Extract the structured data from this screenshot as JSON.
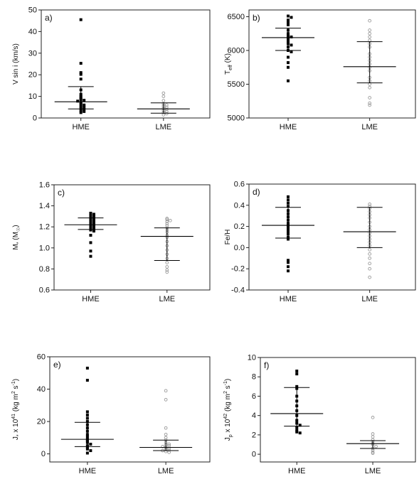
{
  "colors": {
    "hme": "#000000",
    "lme": "#999999",
    "axis": "#222222"
  },
  "chart_data": [
    {
      "type": "scatter",
      "panel_label": "a)",
      "ylabel_html": "V sin i (km/s)",
      "ylim": [
        0,
        50
      ],
      "yticks": [
        0,
        10,
        20,
        30,
        40,
        50
      ],
      "ytick_labels": [
        "0",
        "10",
        "20",
        "30",
        "40",
        "50"
      ],
      "categories": [
        "HME",
        "LME"
      ],
      "series": [
        {
          "name": "HME",
          "marker": "filled-square",
          "values": [
            45.5,
            25.3,
            21.0,
            20.2,
            18.0,
            13.0,
            11.0,
            10.0,
            9.3,
            8.5,
            8.2,
            7.8,
            7.2,
            6.5,
            6.0,
            5.5,
            5.0,
            4.5,
            4.0,
            3.5,
            3.0,
            2.5
          ],
          "median": 7.5,
          "q1": 4.2,
          "q3": 14.5
        },
        {
          "name": "LME",
          "marker": "open-circle",
          "values": [
            11.5,
            10.0,
            8.0,
            6.5,
            6.0,
            5.5,
            5.0,
            4.5,
            4.0,
            3.5,
            3.0,
            2.5,
            2.0,
            1.5
          ],
          "median": 4.2,
          "q1": 2.2,
          "q3": 7.0
        }
      ]
    },
    {
      "type": "scatter",
      "panel_label": "b)",
      "ylabel_main": "T",
      "ylabel_sub": "eff",
      "ylabel_tail": " (K)",
      "ylim": [
        5000,
        6600
      ],
      "yticks": [
        5000,
        5500,
        6000,
        6500
      ],
      "ytick_labels": [
        "5000",
        "5500",
        "6000",
        "6500"
      ],
      "categories": [
        "HME",
        "LME"
      ],
      "series": [
        {
          "name": "HME",
          "marker": "filled-square",
          "values": [
            6510,
            6490,
            6450,
            6420,
            6380,
            6300,
            6250,
            6220,
            6200,
            6180,
            6150,
            6120,
            6100,
            6080,
            6050,
            6000,
            5980,
            5900,
            5820,
            5750,
            5550
          ],
          "median": 6190,
          "q1": 6000,
          "q3": 6330
        },
        {
          "name": "LME",
          "marker": "open-circle",
          "values": [
            6440,
            6300,
            6250,
            6200,
            6150,
            6100,
            6050,
            5950,
            5900,
            5850,
            5800,
            5750,
            5700,
            5600,
            5550,
            5500,
            5450,
            5300,
            5220,
            5190
          ],
          "median": 5760,
          "q1": 5520,
          "q3": 6130
        }
      ]
    },
    {
      "type": "scatter",
      "panel_label": "c)",
      "ylabel_main": "M",
      "ylabel_sub": "*",
      "ylabel_tail": " (M",
      "ylabel_sub2": "☉",
      "ylabel_end": ")",
      "ylim": [
        0.6,
        1.6
      ],
      "yticks": [
        0.6,
        0.8,
        1.0,
        1.2,
        1.4,
        1.6
      ],
      "ytick_labels": [
        "0.6",
        "0.8",
        "1.0",
        "1.2",
        "1.4",
        "1.6"
      ],
      "categories": [
        "HME",
        "LME"
      ],
      "series": [
        {
          "name": "HME",
          "marker": "filled-square",
          "values": [
            1.33,
            1.32,
            1.31,
            1.3,
            1.29,
            1.28,
            1.27,
            1.26,
            1.25,
            1.24,
            1.23,
            1.22,
            1.21,
            1.2,
            1.19,
            1.18,
            1.17,
            1.16,
            1.12,
            1.05,
            0.97,
            0.92
          ],
          "median": 1.22,
          "q1": 1.175,
          "q3": 1.285
        },
        {
          "name": "LME",
          "marker": "open-circle",
          "values": [
            1.28,
            1.27,
            1.26,
            1.25,
            1.23,
            1.21,
            1.19,
            1.17,
            1.15,
            1.12,
            1.1,
            1.06,
            1.02,
            0.98,
            0.94,
            0.9,
            0.86,
            0.82,
            0.79,
            0.77
          ],
          "median": 1.11,
          "q1": 0.88,
          "q3": 1.19
        }
      ]
    },
    {
      "type": "scatter",
      "panel_label": "d)",
      "ylabel_html": "Fe/H",
      "ylim": [
        -0.4,
        0.6
      ],
      "yticks": [
        -0.4,
        -0.2,
        0.0,
        0.2,
        0.4,
        0.6
      ],
      "ytick_labels": [
        "-0.4",
        "-0.2",
        "0.0",
        "0.2",
        "0.4",
        "0.6"
      ],
      "categories": [
        "HME",
        "LME"
      ],
      "series": [
        {
          "name": "HME",
          "marker": "filled-square",
          "values": [
            0.48,
            0.45,
            0.42,
            0.39,
            0.35,
            0.32,
            0.29,
            0.26,
            0.23,
            0.21,
            0.19,
            0.17,
            0.15,
            0.13,
            0.1,
            0.08,
            -0.12,
            -0.14,
            -0.18,
            -0.22
          ],
          "median": 0.21,
          "q1": 0.09,
          "q3": 0.38
        },
        {
          "name": "LME",
          "marker": "open-circle",
          "values": [
            0.41,
            0.39,
            0.37,
            0.34,
            0.31,
            0.28,
            0.24,
            0.2,
            0.17,
            0.14,
            0.11,
            0.08,
            0.05,
            0.02,
            -0.02,
            -0.06,
            -0.1,
            -0.15,
            -0.2,
            -0.28
          ],
          "median": 0.15,
          "q1": 0.0,
          "q3": 0.38
        }
      ]
    },
    {
      "type": "scatter",
      "panel_label": "e)",
      "ylabel_main": "J",
      "ylabel_sub": "*",
      "ylabel_tail": " x 10",
      "ylabel_sup": "41",
      "ylabel_end": " (kg m",
      "ylabel_sup2": "2",
      "ylabel_end2": " s",
      "ylabel_sup3": "-1",
      "ylabel_end3": ")",
      "ylim": [
        -5,
        60
      ],
      "yticks": [
        0,
        20,
        40,
        60
      ],
      "ytick_labels": [
        "0",
        "20",
        "40",
        "60"
      ],
      "categories": [
        "HME",
        "LME"
      ],
      "series": [
        {
          "name": "HME",
          "marker": "filled-square",
          "values": [
            53.0,
            45.5,
            26.0,
            24.0,
            22.0,
            20.0,
            18.0,
            16.0,
            14.0,
            12.0,
            10.5,
            9.0,
            8.0,
            7.0,
            6.0,
            5.0,
            4.0,
            3.0,
            2.0,
            0.5
          ],
          "median": 9.0,
          "q1": 4.5,
          "q3": 19.5
        },
        {
          "name": "LME",
          "marker": "open-circle",
          "values": [
            39.0,
            33.5,
            16.0,
            12.0,
            10.0,
            8.5,
            7.0,
            6.0,
            5.5,
            5.0,
            4.5,
            4.0,
            3.5,
            3.0,
            2.5,
            2.0,
            1.5,
            1.0
          ],
          "median": 4.0,
          "q1": 2.0,
          "q3": 8.5
        }
      ]
    },
    {
      "type": "scatter",
      "panel_label": "f)",
      "ylabel_main": "J",
      "ylabel_sub": "p",
      "ylabel_tail": " x 10",
      "ylabel_sup": "42",
      "ylabel_end": " (kg m",
      "ylabel_sup2": "2",
      "ylabel_end2": " s",
      "ylabel_sup3": "-1",
      "ylabel_end3": ")",
      "ylim": [
        -0.8,
        10
      ],
      "yticks": [
        0,
        2,
        4,
        6,
        8,
        10
      ],
      "ytick_labels": [
        "0",
        "2",
        "4",
        "6",
        "8",
        "10"
      ],
      "categories": [
        "HME",
        "LME"
      ],
      "series": [
        {
          "name": "HME",
          "marker": "filled-square",
          "values": [
            8.6,
            8.3,
            7.0,
            6.8,
            6.0,
            5.5,
            5.0,
            4.5,
            4.0,
            3.5,
            3.2,
            3.0,
            2.8,
            2.5,
            2.3,
            2.2
          ],
          "median": 4.2,
          "q1": 2.9,
          "q3": 6.9
        },
        {
          "name": "LME",
          "marker": "open-circle",
          "values": [
            3.8,
            2.1,
            1.8,
            1.5,
            1.3,
            1.1,
            1.0,
            0.8,
            0.6,
            0.4,
            0.2,
            0.1
          ],
          "median": 1.1,
          "q1": 0.6,
          "q3": 1.4
        }
      ]
    }
  ]
}
